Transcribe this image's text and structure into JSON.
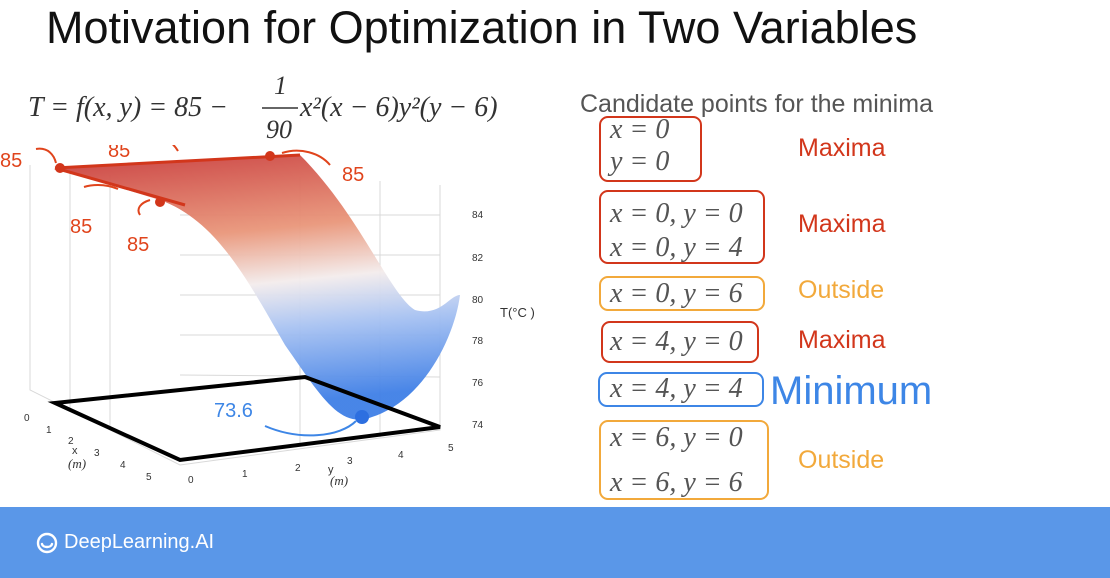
{
  "title": "Motivation for Optimization in Two Variables",
  "formula": {
    "lhs": "T = f(x, y) = 85 −",
    "numerator": "1",
    "denominator": "90",
    "rhs": "x²(x − 6)y²(y − 6)"
  },
  "plot": {
    "callouts": [
      "85",
      "85",
      "85",
      "85",
      "85"
    ],
    "minimum_callout": "73.6",
    "z_ticks": [
      "84",
      "82",
      "80",
      "78",
      "76",
      "74"
    ],
    "z_label": "T(°C )",
    "x_ticks": [
      "0",
      "1",
      "2",
      "3",
      "4",
      "5"
    ],
    "x_label": "x",
    "x_unit": "(m)",
    "y_ticks": [
      "0",
      "1",
      "2",
      "3",
      "4",
      "5"
    ],
    "y_label": "y",
    "y_unit": "(m)",
    "colors": {
      "high": "#c83a3a",
      "low": "#3f7fe6",
      "callout": "#e0441c",
      "box": "#000000"
    }
  },
  "candidates": {
    "title": "Candidate points for the minima",
    "rows": [
      {
        "lines": [
          "x = 0",
          "y = 0"
        ],
        "label": "Maxima",
        "color": "#d2361b"
      },
      {
        "lines": [
          "x = 0,  y = 0",
          "x = 0,  y = 4"
        ],
        "label": "Maxima",
        "color": "#d2361b"
      },
      {
        "lines": [
          "x = 0,  y = 6"
        ],
        "label": "Outside",
        "color": "#f2a93b"
      },
      {
        "lines": [
          "x = 4,  y = 0"
        ],
        "label": "Maxima",
        "color": "#d2361b"
      },
      {
        "lines": [
          "x = 4,  y = 4"
        ],
        "label": "Minimum",
        "color": "#3d86e6"
      },
      {
        "lines": [
          "x = 6,  y = 0",
          "x = 6,  y = 6"
        ],
        "label": "Outside",
        "color": "#f2a93b"
      }
    ]
  },
  "footer": {
    "brand": "DeepLearning.AI",
    "background": "#5a97e8"
  }
}
